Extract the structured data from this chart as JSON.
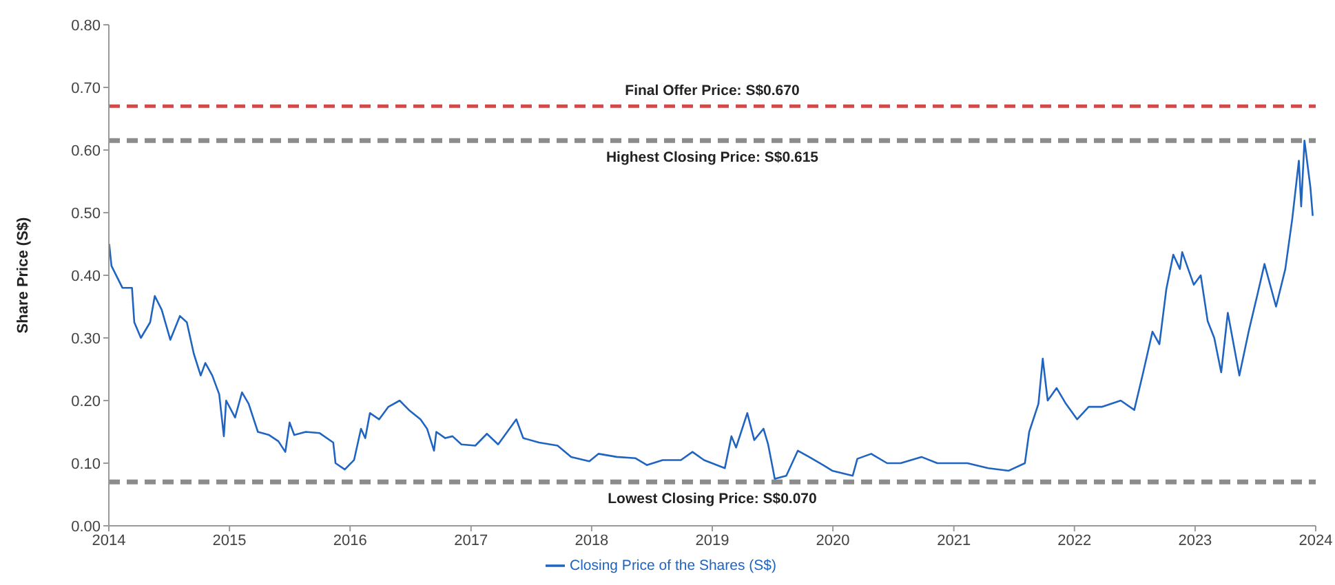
{
  "chart_data": {
    "type": "line",
    "xlabel": null,
    "ylabel": "Share Price (S$)",
    "ylim": [
      0,
      0.8
    ],
    "yticks": [
      {
        "value": 0,
        "label": "0.00"
      },
      {
        "value": 0.1,
        "label": "0.10"
      },
      {
        "value": 0.2,
        "label": "0.20"
      },
      {
        "value": 0.3,
        "label": "0.30"
      },
      {
        "value": 0.4,
        "label": "0.40"
      },
      {
        "value": 0.5,
        "label": "0.50"
      },
      {
        "value": 0.6,
        "label": "0.60"
      },
      {
        "value": 0.7,
        "label": "0.70"
      },
      {
        "value": 0.8,
        "label": "0.80"
      }
    ],
    "xlim": [
      "2014-01-01",
      "2024-01-01"
    ],
    "xticks": [
      {
        "value": "2014-01-01",
        "label": "2014"
      },
      {
        "value": "2015-01-01",
        "label": "2015"
      },
      {
        "value": "2016-01-01",
        "label": "2016"
      },
      {
        "value": "2017-01-01",
        "label": "2017"
      },
      {
        "value": "2018-01-01",
        "label": "2018"
      },
      {
        "value": "2019-01-01",
        "label": "2019"
      },
      {
        "value": "2020-01-01",
        "label": "2020"
      },
      {
        "value": "2021-01-01",
        "label": "2021"
      },
      {
        "value": "2022-01-01",
        "label": "2022"
      },
      {
        "value": "2023-01-01",
        "label": "2023"
      },
      {
        "value": "2024-01-01",
        "label": "2024"
      }
    ],
    "grid": false,
    "legend": "bottom",
    "marker": "none",
    "line_style": "solid",
    "x": [
      "2014-01-02",
      "2014-01-09",
      "2014-02-11",
      "2014-03-12",
      "2014-03-19",
      "2014-04-08",
      "2014-05-06",
      "2014-05-20",
      "2014-06-10",
      "2014-07-06",
      "2014-08-04",
      "2014-08-25",
      "2014-09-15",
      "2014-10-06",
      "2014-10-20",
      "2014-11-10",
      "2014-12-01",
      "2014-12-15",
      "2014-12-22",
      "2015-01-18",
      "2015-02-08",
      "2015-02-28",
      "2015-03-28",
      "2015-05-01",
      "2015-05-29",
      "2015-06-19",
      "2015-07-02",
      "2015-07-16",
      "2015-08-20",
      "2015-10-01",
      "2015-11-11",
      "2015-11-18",
      "2015-12-16",
      "2016-01-13",
      "2016-02-03",
      "2016-02-16",
      "2016-03-01",
      "2016-03-29",
      "2016-04-26",
      "2016-05-30",
      "2016-06-27",
      "2016-08-01",
      "2016-08-21",
      "2016-09-11",
      "2016-09-18",
      "2016-10-15",
      "2016-11-06",
      "2016-12-03",
      "2017-01-14",
      "2017-02-18",
      "2017-03-24",
      "2017-05-18",
      "2017-06-08",
      "2017-07-26",
      "2017-09-20",
      "2017-10-31",
      "2017-12-25",
      "2018-01-22",
      "2018-03-18",
      "2018-05-13",
      "2018-06-17",
      "2018-08-04",
      "2018-09-28",
      "2018-11-02",
      "2018-12-07",
      "2019-02-08",
      "2019-02-28",
      "2019-03-14",
      "2019-04-17",
      "2019-05-08",
      "2019-06-05",
      "2019-06-19",
      "2019-07-03",
      "2019-07-09",
      "2019-08-13",
      "2019-09-17",
      "2019-10-21",
      "2019-12-02",
      "2019-12-30",
      "2020-03-01",
      "2020-03-15",
      "2020-04-26",
      "2020-06-13",
      "2020-07-24",
      "2020-09-25",
      "2020-11-12",
      "2021-02-11",
      "2021-04-15",
      "2021-06-16",
      "2021-08-04",
      "2021-08-17",
      "2021-09-14",
      "2021-09-27",
      "2021-10-12",
      "2021-11-08",
      "2021-12-06",
      "2022-01-09",
      "2022-02-13",
      "2022-03-26",
      "2022-05-21",
      "2022-07-01",
      "2022-07-28",
      "2022-08-25",
      "2022-09-15",
      "2022-10-06",
      "2022-10-27",
      "2022-11-16",
      "2022-11-23",
      "2022-12-28",
      "2023-01-18",
      "2023-02-08",
      "2023-02-28",
      "2023-03-21",
      "2023-04-10",
      "2023-05-15",
      "2023-06-12",
      "2023-07-09",
      "2023-07-30",
      "2023-09-03",
      "2023-10-01",
      "2023-10-22",
      "2023-11-11",
      "2023-11-18",
      "2023-11-28",
      "2023-12-16",
      "2023-12-23"
    ],
    "series": [
      {
        "name": "Closing Price of the Shares (S$)",
        "color": "#1f64c0",
        "values": [
          0.45,
          0.415,
          0.38,
          0.38,
          0.325,
          0.3,
          0.325,
          0.367,
          0.345,
          0.297,
          0.335,
          0.325,
          0.275,
          0.24,
          0.26,
          0.24,
          0.21,
          0.143,
          0.2,
          0.173,
          0.213,
          0.195,
          0.15,
          0.145,
          0.135,
          0.118,
          0.165,
          0.145,
          0.15,
          0.148,
          0.133,
          0.1,
          0.09,
          0.105,
          0.155,
          0.14,
          0.18,
          0.17,
          0.19,
          0.2,
          0.185,
          0.17,
          0.155,
          0.12,
          0.15,
          0.14,
          0.143,
          0.13,
          0.128,
          0.147,
          0.13,
          0.17,
          0.14,
          0.133,
          0.128,
          0.11,
          0.103,
          0.115,
          0.11,
          0.108,
          0.097,
          0.105,
          0.105,
          0.118,
          0.105,
          0.092,
          0.143,
          0.125,
          0.18,
          0.137,
          0.155,
          0.13,
          0.092,
          0.075,
          0.08,
          0.12,
          0.11,
          0.097,
          0.088,
          0.08,
          0.107,
          0.115,
          0.1,
          0.1,
          0.11,
          0.1,
          0.1,
          0.092,
          0.088,
          0.1,
          0.15,
          0.195,
          0.267,
          0.2,
          0.22,
          0.195,
          0.17,
          0.19,
          0.19,
          0.2,
          0.185,
          0.245,
          0.31,
          0.29,
          0.378,
          0.433,
          0.41,
          0.437,
          0.385,
          0.4,
          0.327,
          0.3,
          0.245,
          0.34,
          0.24,
          0.31,
          0.37,
          0.418,
          0.35,
          0.41,
          0.49,
          0.583,
          0.51,
          0.615,
          0.54,
          0.495
        ]
      }
    ],
    "ref_lines": [
      {
        "axis": "y",
        "value": 0.67,
        "label": "Final Offer Price: S$0.670",
        "color": "#d04a4a",
        "line_style": "dashed"
      },
      {
        "axis": "y",
        "value": 0.615,
        "label": "Highest Closing Price: S$0.615",
        "color": "#8c8c8c",
        "line_style": "dashed"
      },
      {
        "axis": "y",
        "value": 0.07,
        "label": "Lowest Closing Price: S$0.070",
        "color": "#8c8c8c",
        "line_style": "dashed"
      }
    ]
  }
}
